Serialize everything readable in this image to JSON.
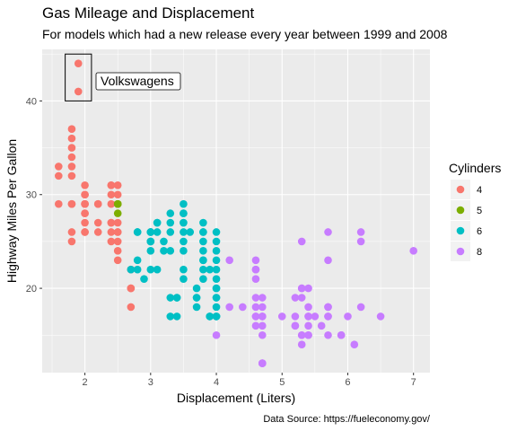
{
  "chart_data": {
    "type": "scatter",
    "title": "Gas Mileage and Displacement",
    "subtitle": "For models which had a new release every year between 1999 and 2008",
    "caption": "Data Source: https://fueleconomy.gov/",
    "xlabel": "Displacement (Liters)",
    "ylabel": "Highway Miles Per Gallon",
    "xlim": [
      1.35,
      7.25
    ],
    "ylim": [
      11.0,
      45.5
    ],
    "x_ticks": [
      2,
      3,
      4,
      5,
      6,
      7
    ],
    "y_ticks": [
      20,
      30,
      40
    ],
    "grid": true,
    "legend": {
      "title": "Cylinders",
      "placement": "right",
      "entries": [
        {
          "label": "4",
          "color": "#F8766D"
        },
        {
          "label": "5",
          "color": "#7CAE00"
        },
        {
          "label": "6",
          "color": "#00BFC4"
        },
        {
          "label": "8",
          "color": "#C77CFF"
        }
      ]
    },
    "annotation": {
      "label": "Volkswagens",
      "box_range": {
        "x": [
          1.7,
          2.1
        ],
        "y": [
          40,
          45
        ]
      }
    },
    "series": [
      {
        "name": "4",
        "color": "#F8766D",
        "points": [
          [
            1.8,
            29
          ],
          [
            1.8,
            29
          ],
          [
            2.0,
            31
          ],
          [
            2.0,
            30
          ],
          [
            1.8,
            26
          ],
          [
            1.8,
            25
          ],
          [
            2.0,
            28
          ],
          [
            2.0,
            26
          ],
          [
            2.0,
            29
          ],
          [
            2.4,
            27
          ],
          [
            2.4,
            30
          ],
          [
            2.4,
            31
          ],
          [
            2.4,
            26
          ],
          [
            2.5,
            23
          ],
          [
            2.5,
            26
          ],
          [
            2.5,
            25
          ],
          [
            2.5,
            27
          ],
          [
            2.2,
            26
          ],
          [
            2.2,
            27
          ],
          [
            2.4,
            29
          ],
          [
            2.4,
            31
          ],
          [
            2.2,
            29
          ],
          [
            2.7,
            20
          ],
          [
            2.7,
            20
          ],
          [
            2.7,
            22
          ],
          [
            1.8,
            33
          ],
          [
            1.8,
            35
          ],
          [
            1.8,
            37
          ],
          [
            1.8,
            36
          ],
          [
            1.8,
            34
          ],
          [
            1.6,
            33
          ],
          [
            1.6,
            32
          ],
          [
            1.6,
            29
          ],
          [
            2.0,
            26
          ],
          [
            2.5,
            24
          ],
          [
            2.0,
            29
          ],
          [
            1.9,
            44
          ],
          [
            1.9,
            41
          ],
          [
            2.5,
            31
          ],
          [
            2.5,
            30
          ],
          [
            2.0,
            27
          ],
          [
            2.0,
            28
          ],
          [
            2.0,
            30
          ],
          [
            2.5,
            29
          ],
          [
            2.4,
            25
          ],
          [
            2.7,
            18
          ],
          [
            2.0,
            29
          ],
          [
            1.8,
            32
          ],
          [
            2.4,
            27
          ],
          [
            2.2,
            29
          ],
          [
            2.5,
            26
          ]
        ]
      },
      {
        "name": "5",
        "color": "#7CAE00",
        "points": [
          [
            2.5,
            29
          ],
          [
            2.5,
            28
          ],
          [
            2.5,
            29
          ]
        ]
      },
      {
        "name": "6",
        "color": "#00BFC4",
        "points": [
          [
            2.8,
            26
          ],
          [
            2.8,
            26
          ],
          [
            3.1,
            27
          ],
          [
            3.1,
            26
          ],
          [
            3.3,
            28
          ],
          [
            3.0,
            26
          ],
          [
            3.0,
            25
          ],
          [
            3.3,
            24
          ],
          [
            3.5,
            28
          ],
          [
            3.8,
            27
          ],
          [
            3.8,
            26
          ],
          [
            3.8,
            22
          ],
          [
            4.0,
            25
          ],
          [
            3.3,
            26
          ],
          [
            3.5,
            29
          ],
          [
            3.6,
            26
          ],
          [
            3.8,
            23
          ],
          [
            3.5,
            24
          ],
          [
            3.7,
            19
          ],
          [
            3.0,
            24
          ],
          [
            3.0,
            26
          ],
          [
            3.3,
            19
          ],
          [
            4.0,
            20
          ],
          [
            4.0,
            17
          ],
          [
            3.9,
            17
          ],
          [
            4.0,
            19
          ],
          [
            4.0,
            18
          ],
          [
            3.7,
            20
          ],
          [
            3.4,
            17
          ],
          [
            3.3,
            17
          ],
          [
            3.5,
            22
          ],
          [
            3.8,
            21
          ],
          [
            4.0,
            20
          ],
          [
            2.7,
            22
          ],
          [
            3.0,
            22
          ],
          [
            3.2,
            24
          ],
          [
            3.0,
            25
          ],
          [
            2.8,
            22
          ],
          [
            3.4,
            19
          ],
          [
            3.5,
            25
          ],
          [
            3.8,
            26
          ],
          [
            4.0,
            23
          ],
          [
            2.9,
            21
          ],
          [
            3.5,
            26
          ],
          [
            3.7,
            19
          ],
          [
            3.7,
            18
          ],
          [
            4.0,
            19
          ],
          [
            4.0,
            22
          ],
          [
            4.0,
            21
          ],
          [
            4.0,
            17
          ],
          [
            3.0,
            26
          ],
          [
            3.5,
            27
          ],
          [
            3.8,
            25
          ],
          [
            3.8,
            24
          ],
          [
            3.1,
            22
          ],
          [
            3.5,
            21
          ],
          [
            4.0,
            17
          ],
          [
            3.4,
            19
          ],
          [
            3.9,
            22
          ],
          [
            3.9,
            17
          ],
          [
            3.2,
            25
          ],
          [
            3.3,
            27
          ],
          [
            3.5,
            27
          ],
          [
            3.1,
            27
          ],
          [
            4.0,
            26
          ],
          [
            4.0,
            24
          ],
          [
            3.5,
            28
          ],
          [
            3.8,
            23
          ],
          [
            2.8,
            23
          ],
          [
            3.0,
            25
          ]
        ]
      },
      {
        "name": "8",
        "color": "#C77CFF",
        "points": [
          [
            5.3,
            20
          ],
          [
            5.3,
            15
          ],
          [
            5.3,
            20
          ],
          [
            5.7,
            17
          ],
          [
            6.0,
            17
          ],
          [
            5.7,
            26
          ],
          [
            5.7,
            23
          ],
          [
            6.2,
            26
          ],
          [
            6.2,
            25
          ],
          [
            7.0,
            24
          ],
          [
            5.3,
            19
          ],
          [
            5.3,
            14
          ],
          [
            5.7,
            15
          ],
          [
            6.5,
            17
          ],
          [
            4.7,
            17
          ],
          [
            4.7,
            12
          ],
          [
            4.7,
            12
          ],
          [
            5.2,
            16
          ],
          [
            5.7,
            18
          ],
          [
            5.9,
            15
          ],
          [
            4.7,
            16
          ],
          [
            4.7,
            12
          ],
          [
            4.7,
            17
          ],
          [
            5.2,
            17
          ],
          [
            5.2,
            16
          ],
          [
            5.7,
            18
          ],
          [
            5.9,
            15
          ],
          [
            4.6,
            17
          ],
          [
            5.4,
            15
          ],
          [
            5.4,
            18
          ],
          [
            4.6,
            17
          ],
          [
            5.4,
            17
          ],
          [
            4.6,
            19
          ],
          [
            5.0,
            17
          ],
          [
            5.4,
            17
          ],
          [
            4.2,
            23
          ],
          [
            4.4,
            18
          ],
          [
            4.6,
            22
          ],
          [
            4.6,
            23
          ],
          [
            4.6,
            22
          ],
          [
            4.6,
            21
          ],
          [
            4.0,
            15
          ],
          [
            4.7,
            17
          ],
          [
            5.7,
            17
          ],
          [
            6.1,
            14
          ],
          [
            5.3,
            25
          ],
          [
            6.2,
            18
          ],
          [
            5.4,
            20
          ],
          [
            4.2,
            18
          ],
          [
            4.6,
            16
          ],
          [
            5.3,
            15
          ],
          [
            4.7,
            19
          ],
          [
            5.5,
            17
          ],
          [
            5.4,
            15
          ],
          [
            4.7,
            15
          ],
          [
            4.7,
            18
          ],
          [
            4.6,
            18
          ],
          [
            5.6,
            16
          ],
          [
            5.4,
            16
          ],
          [
            5.2,
            19
          ]
        ]
      }
    ]
  }
}
